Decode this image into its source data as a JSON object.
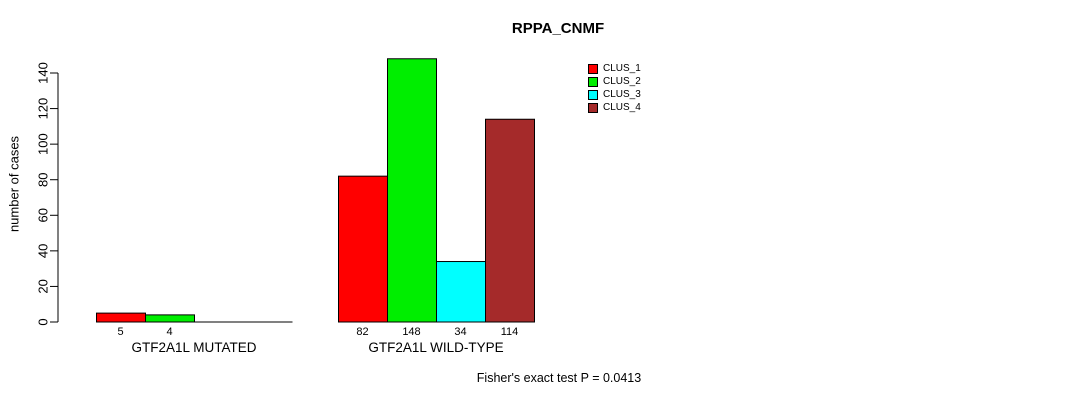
{
  "chart_data": {
    "type": "bar",
    "title": "RPPA_CNMF",
    "ylabel": "number of cases",
    "ylim": [
      0,
      140
    ],
    "yticks": [
      0,
      20,
      40,
      60,
      80,
      100,
      120,
      140
    ],
    "grid": false,
    "series_names": [
      "CLUS_1",
      "CLUS_2",
      "CLUS_3",
      "CLUS_4"
    ],
    "series_colors": [
      "#FF0000",
      "#00EE00",
      "#00FFFF",
      "#A52A2A"
    ],
    "groups": [
      {
        "label": "GTF2A1L MUTATED",
        "values": [
          5,
          4,
          0,
          0
        ],
        "value_labels": [
          "5",
          "4",
          "",
          ""
        ]
      },
      {
        "label": "GTF2A1L WILD-TYPE",
        "values": [
          82,
          148,
          34,
          114
        ],
        "value_labels": [
          "82",
          "148",
          "34",
          "114"
        ]
      }
    ],
    "legend_position": "top-right",
    "footer": "Fisher's exact test P = 0.0413",
    "axis_color": "#000000",
    "background_color": "#FFFFFF"
  }
}
